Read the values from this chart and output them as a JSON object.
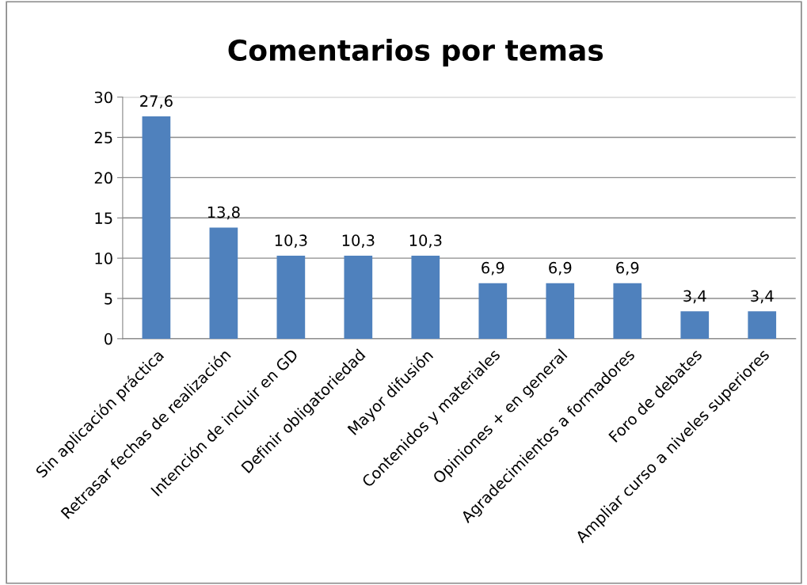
{
  "chart_data": {
    "type": "bar",
    "title": "Comentarios por temas",
    "categories": [
      "Sin aplicación práctica",
      "Retrasar fechas de realización",
      "Intención de incluir en GD",
      "Definir obligatoriedad",
      "Mayor difusión",
      "Contenidos y materiales",
      "Opiniones + en general",
      "Agradecimientos a formadores",
      "Foro de debates",
      "Ampliar curso a niveles superiores"
    ],
    "values": [
      27.6,
      13.8,
      10.3,
      10.3,
      10.3,
      6.9,
      6.9,
      6.9,
      3.4,
      3.4
    ],
    "value_labels": [
      "27,6",
      "13,8",
      "10,3",
      "10,3",
      "10,3",
      "6,9",
      "6,9",
      "6,9",
      "3,4",
      "3,4"
    ],
    "color": "#4f81bd",
    "ylim": [
      0,
      30
    ],
    "yticks": [
      0,
      5,
      10,
      15,
      20,
      25,
      30
    ],
    "grid": "y"
  }
}
